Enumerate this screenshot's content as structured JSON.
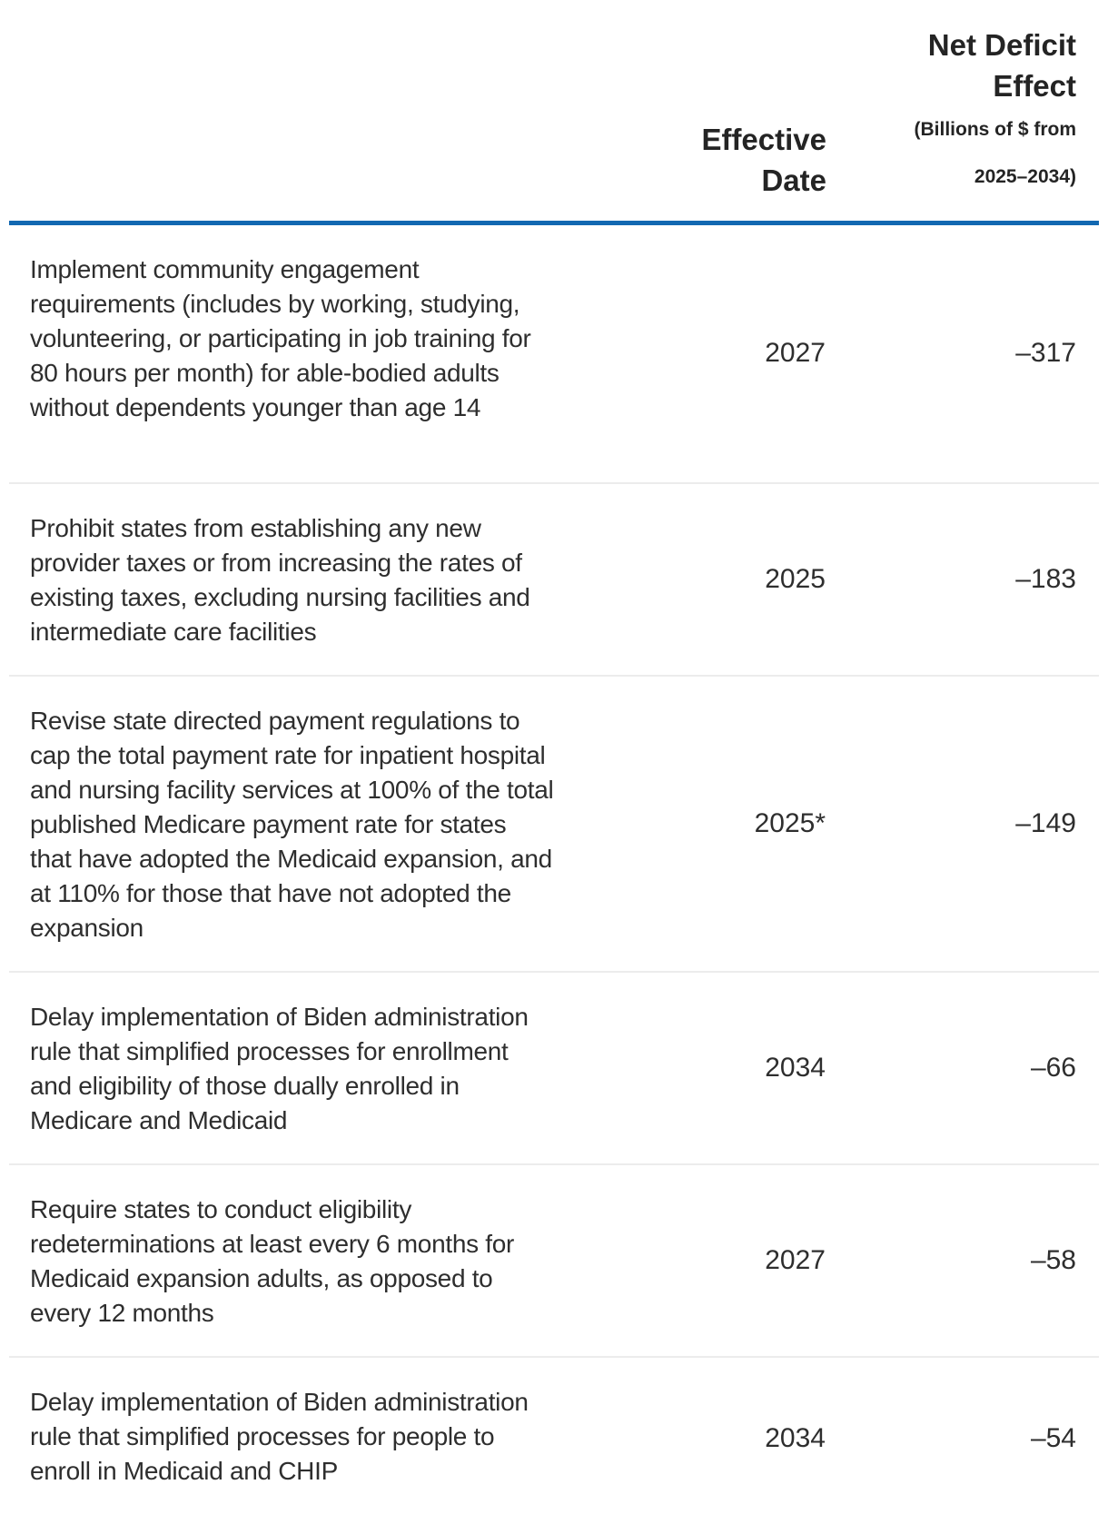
{
  "table": {
    "headers": {
      "policy": "",
      "effective_date": "Effective Date",
      "net_deficit_title": "Net Deficit Effect",
      "net_deficit_subtitle": "(Billions of $ from 2025–2034)"
    },
    "rows": [
      {
        "policy": "Implement community engagement requirements (includes by working, studying, volunteering, or participating in job training for 80 hours per month) for able-bodied adults without dependents younger than age 14",
        "effective_date": "2027",
        "net_deficit_effect": "–317"
      },
      {
        "policy": "Prohibit states from establishing any new provider taxes or from increasing the rates of existing taxes, excluding nursing facilities and intermediate care facilities",
        "effective_date": "2025",
        "net_deficit_effect": "–183"
      },
      {
        "policy": "Revise state directed payment regulations to cap the total payment rate for inpatient hospital and nursing facility services at 100% of the total published Medicare payment rate for states that have adopted the Medicaid expansion, and at 110% for those that have not adopted the expansion",
        "effective_date": "2025*",
        "net_deficit_effect": "–149"
      },
      {
        "policy": "Delay implementation of Biden administration rule that simplified processes for enrollment and eligibility of those dually enrolled in Medicare and Medicaid",
        "effective_date": "2034",
        "net_deficit_effect": "–66"
      },
      {
        "policy": "Require states to conduct eligibility redeterminations at least every 6 months for Medicaid expansion adults, as opposed to every 12 months",
        "effective_date": "2027",
        "net_deficit_effect": "–58"
      },
      {
        "policy": "Delay implementation of Biden administration rule that simplified processes for people to enroll in Medicaid and CHIP",
        "effective_date": "2034",
        "net_deficit_effect": "–54"
      }
    ]
  },
  "colors": {
    "header_rule_blue": "#1268b1",
    "row_separator_gray": "#ececec",
    "text": "#2b2b2b"
  },
  "chart_data": {
    "type": "table",
    "title": "",
    "columns": [
      "",
      "Effective Date",
      "Net Deficit Effect (Billions of $ from 2025–2034)"
    ],
    "rows": [
      [
        "Implement community engagement requirements (includes by working, studying, volunteering, or participating in job training for 80 hours per month) for able-bodied adults without dependents younger than age 14",
        "2027",
        -317
      ],
      [
        "Prohibit states from establishing any new provider taxes or from increasing the rates of existing taxes, excluding nursing facilities and intermediate care facilities",
        "2025",
        -183
      ],
      [
        "Revise state directed payment regulations to cap the total payment rate for inpatient hospital and nursing facility services at 100% of the total published Medicare payment rate for states that have adopted the Medicaid expansion, and at 110% for those that have not adopted the expansion",
        "2025*",
        -149
      ],
      [
        "Delay implementation of Biden administration rule that simplified processes for enrollment and eligibility of those dually enrolled in Medicare and Medicaid",
        "2034",
        -66
      ],
      [
        "Require states to conduct eligibility redeterminations at least every 6 months for Medicaid expansion adults, as opposed to every 12 months",
        "2027",
        -58
      ],
      [
        "Delay implementation of Biden administration rule that simplified processes for people to enroll in Medicaid and CHIP",
        "2034",
        -54
      ]
    ],
    "layout": {
      "value_alignment": "right",
      "header_rule": "thick blue bottom border under header row",
      "row_separators": "thin light gray lines between rows"
    }
  }
}
